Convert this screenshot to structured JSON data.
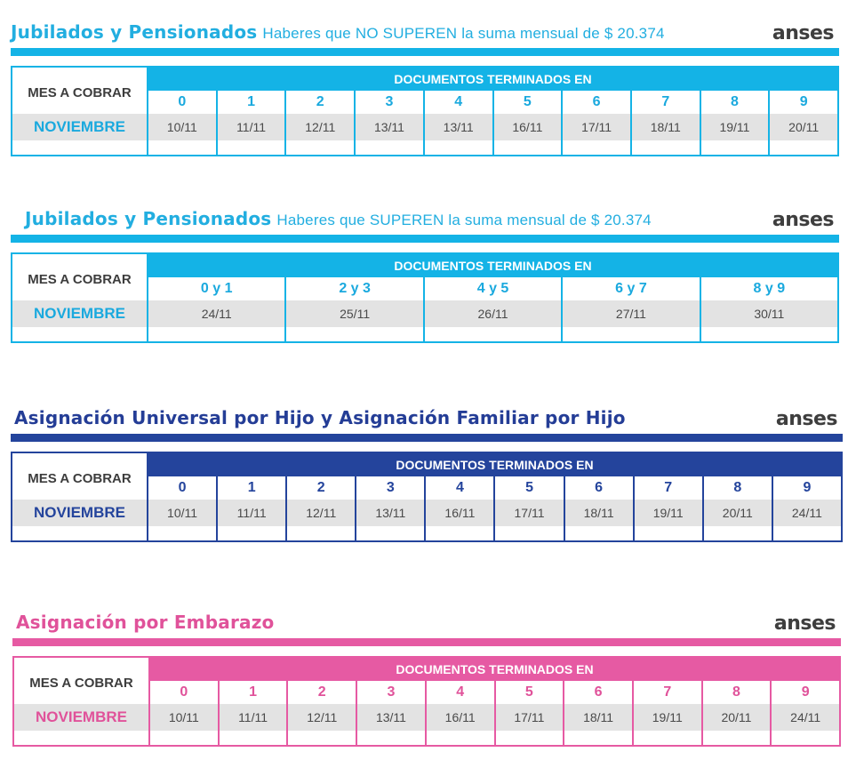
{
  "sections": [
    {
      "title": "Jubilados y Pensionados",
      "subtitle": "Haberes que NO SUPEREN la suma mensual de $ 20.374",
      "logo": "anses",
      "mes_label": "MES A COBRAR",
      "month": "NOVIEMBRE",
      "docs_header": "DOCUMENTOS TERMINADOS EN",
      "color": "#14b3e6",
      "columns": [
        {
          "digit": "0",
          "date": "10/11"
        },
        {
          "digit": "1",
          "date": "11/11"
        },
        {
          "digit": "2",
          "date": "12/11"
        },
        {
          "digit": "3",
          "date": "13/11"
        },
        {
          "digit": "4",
          "date": "13/11"
        },
        {
          "digit": "5",
          "date": "16/11"
        },
        {
          "digit": "6",
          "date": "17/11"
        },
        {
          "digit": "7",
          "date": "18/11"
        },
        {
          "digit": "8",
          "date": "19/11"
        },
        {
          "digit": "9",
          "date": "20/11"
        }
      ]
    },
    {
      "title": "Jubilados y Pensionados",
      "subtitle": "Haberes que SUPEREN la suma mensual de $ 20.374",
      "logo": "anses",
      "mes_label": "MES A COBRAR",
      "month": "NOVIEMBRE",
      "docs_header": "DOCUMENTOS TERMINADOS EN",
      "color": "#14b3e6",
      "columns": [
        {
          "digit": "0 y 1",
          "date": "24/11"
        },
        {
          "digit": "2 y 3",
          "date": "25/11"
        },
        {
          "digit": "4 y 5",
          "date": "26/11"
        },
        {
          "digit": "6 y 7",
          "date": "27/11"
        },
        {
          "digit": "8 y 9",
          "date": "30/11"
        }
      ]
    },
    {
      "title": "Asignación Universal por Hijo y Asignación Familiar por Hijo",
      "subtitle": "",
      "logo": "anses",
      "mes_label": "MES A COBRAR",
      "month": "NOVIEMBRE",
      "docs_header": "DOCUMENTOS TERMINADOS EN",
      "color": "#24449c",
      "columns": [
        {
          "digit": "0",
          "date": "10/11"
        },
        {
          "digit": "1",
          "date": "11/11"
        },
        {
          "digit": "2",
          "date": "12/11"
        },
        {
          "digit": "3",
          "date": "13/11"
        },
        {
          "digit": "4",
          "date": "16/11"
        },
        {
          "digit": "5",
          "date": "17/11"
        },
        {
          "digit": "6",
          "date": "18/11"
        },
        {
          "digit": "7",
          "date": "19/11"
        },
        {
          "digit": "8",
          "date": "20/11"
        },
        {
          "digit": "9",
          "date": "24/11"
        }
      ]
    },
    {
      "title": "Asignación por Embarazo",
      "subtitle": "",
      "logo": "anses",
      "mes_label": "MES A COBRAR",
      "month": "NOVIEMBRE",
      "docs_header": "DOCUMENTOS TERMINADOS EN",
      "color": "#e65aa3",
      "columns": [
        {
          "digit": "0",
          "date": "10/11"
        },
        {
          "digit": "1",
          "date": "11/11"
        },
        {
          "digit": "2",
          "date": "12/11"
        },
        {
          "digit": "3",
          "date": "13/11"
        },
        {
          "digit": "4",
          "date": "16/11"
        },
        {
          "digit": "5",
          "date": "17/11"
        },
        {
          "digit": "6",
          "date": "18/11"
        },
        {
          "digit": "7",
          "date": "19/11"
        },
        {
          "digit": "8",
          "date": "20/11"
        },
        {
          "digit": "9",
          "date": "24/11"
        }
      ]
    }
  ]
}
